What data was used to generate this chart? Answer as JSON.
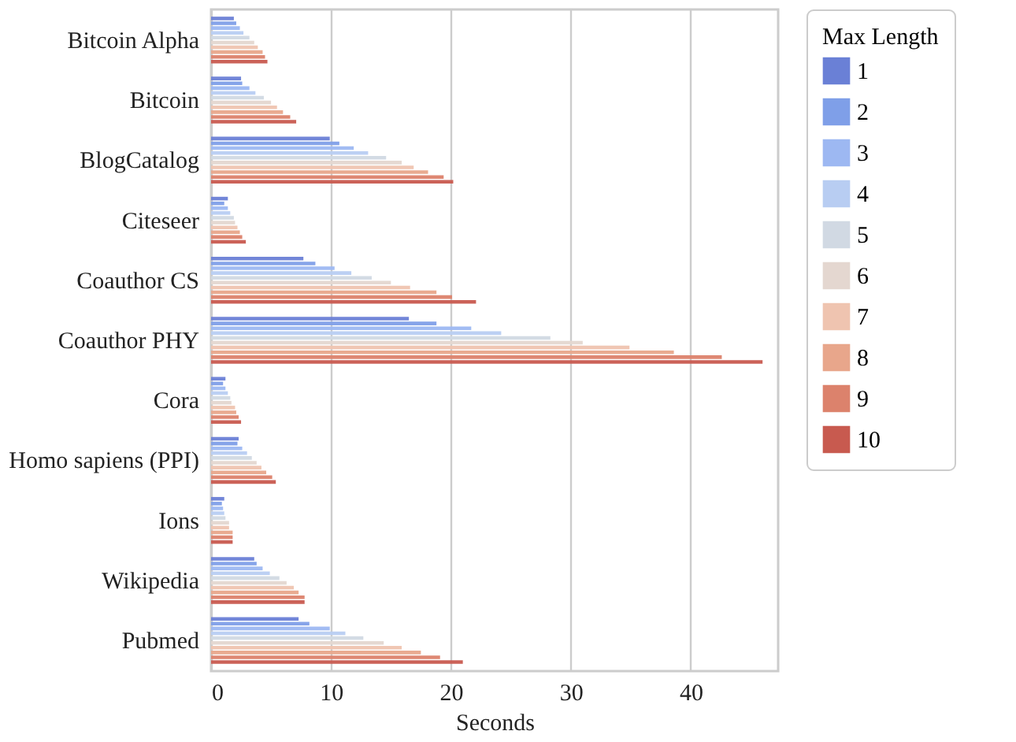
{
  "chart_data": {
    "type": "bar",
    "orientation": "horizontal",
    "xlabel": "Seconds",
    "legend_title": "Max Length",
    "legend": "right",
    "grid": "x",
    "categories": [
      "Bitcoin Alpha",
      "Bitcoin",
      "BlogCatalog",
      "Citeseer",
      "Coauthor CS",
      "Coauthor PHY",
      "Cora",
      "Homo sapiens (PPI)",
      "Ions",
      "Wikipedia",
      "Pubmed"
    ],
    "xlim": [
      0,
      47.3
    ],
    "xticks": [
      0,
      10,
      20,
      30,
      40
    ],
    "series": [
      {
        "name": "1",
        "color": "#6a80d6",
        "values": [
          1.9,
          2.5,
          9.9,
          1.4,
          7.7,
          16.5,
          1.2,
          2.3,
          1.1,
          3.6,
          7.3
        ]
      },
      {
        "name": "2",
        "color": "#7f9fe8",
        "values": [
          2.1,
          2.6,
          10.7,
          1.1,
          8.7,
          18.8,
          1.0,
          2.2,
          0.9,
          3.8,
          8.2
        ]
      },
      {
        "name": "3",
        "color": "#9db8f2",
        "values": [
          2.4,
          3.2,
          11.9,
          1.4,
          10.3,
          21.7,
          1.2,
          2.6,
          1.0,
          4.3,
          9.9
        ]
      },
      {
        "name": "4",
        "color": "#b8cdf2",
        "values": [
          2.7,
          3.7,
          13.1,
          1.6,
          11.7,
          24.2,
          1.4,
          3.0,
          1.1,
          4.9,
          11.2
        ]
      },
      {
        "name": "5",
        "color": "#d1d9e3",
        "values": [
          3.2,
          4.4,
          14.6,
          1.9,
          13.4,
          28.3,
          1.6,
          3.4,
          1.2,
          5.7,
          12.7
        ]
      },
      {
        "name": "6",
        "color": "#e4d7d0",
        "values": [
          3.6,
          5.0,
          15.9,
          2.0,
          15.0,
          31.0,
          1.7,
          3.8,
          1.5,
          6.3,
          14.4
        ]
      },
      {
        "name": "7",
        "color": "#efc4b0",
        "values": [
          3.9,
          5.5,
          16.9,
          2.2,
          16.6,
          34.9,
          2.0,
          4.2,
          1.5,
          6.9,
          15.9
        ]
      },
      {
        "name": "8",
        "color": "#e8a68b",
        "values": [
          4.3,
          6.0,
          18.1,
          2.4,
          18.8,
          38.6,
          2.1,
          4.6,
          1.8,
          7.3,
          17.5
        ]
      },
      {
        "name": "9",
        "color": "#dc826c",
        "values": [
          4.5,
          6.6,
          19.4,
          2.6,
          20.1,
          42.6,
          2.3,
          5.1,
          1.8,
          7.8,
          19.1
        ]
      },
      {
        "name": "10",
        "color": "#c85a4f",
        "values": [
          4.7,
          7.1,
          20.2,
          2.9,
          22.1,
          46.0,
          2.5,
          5.4,
          1.8,
          7.8,
          21.0
        ]
      }
    ]
  }
}
